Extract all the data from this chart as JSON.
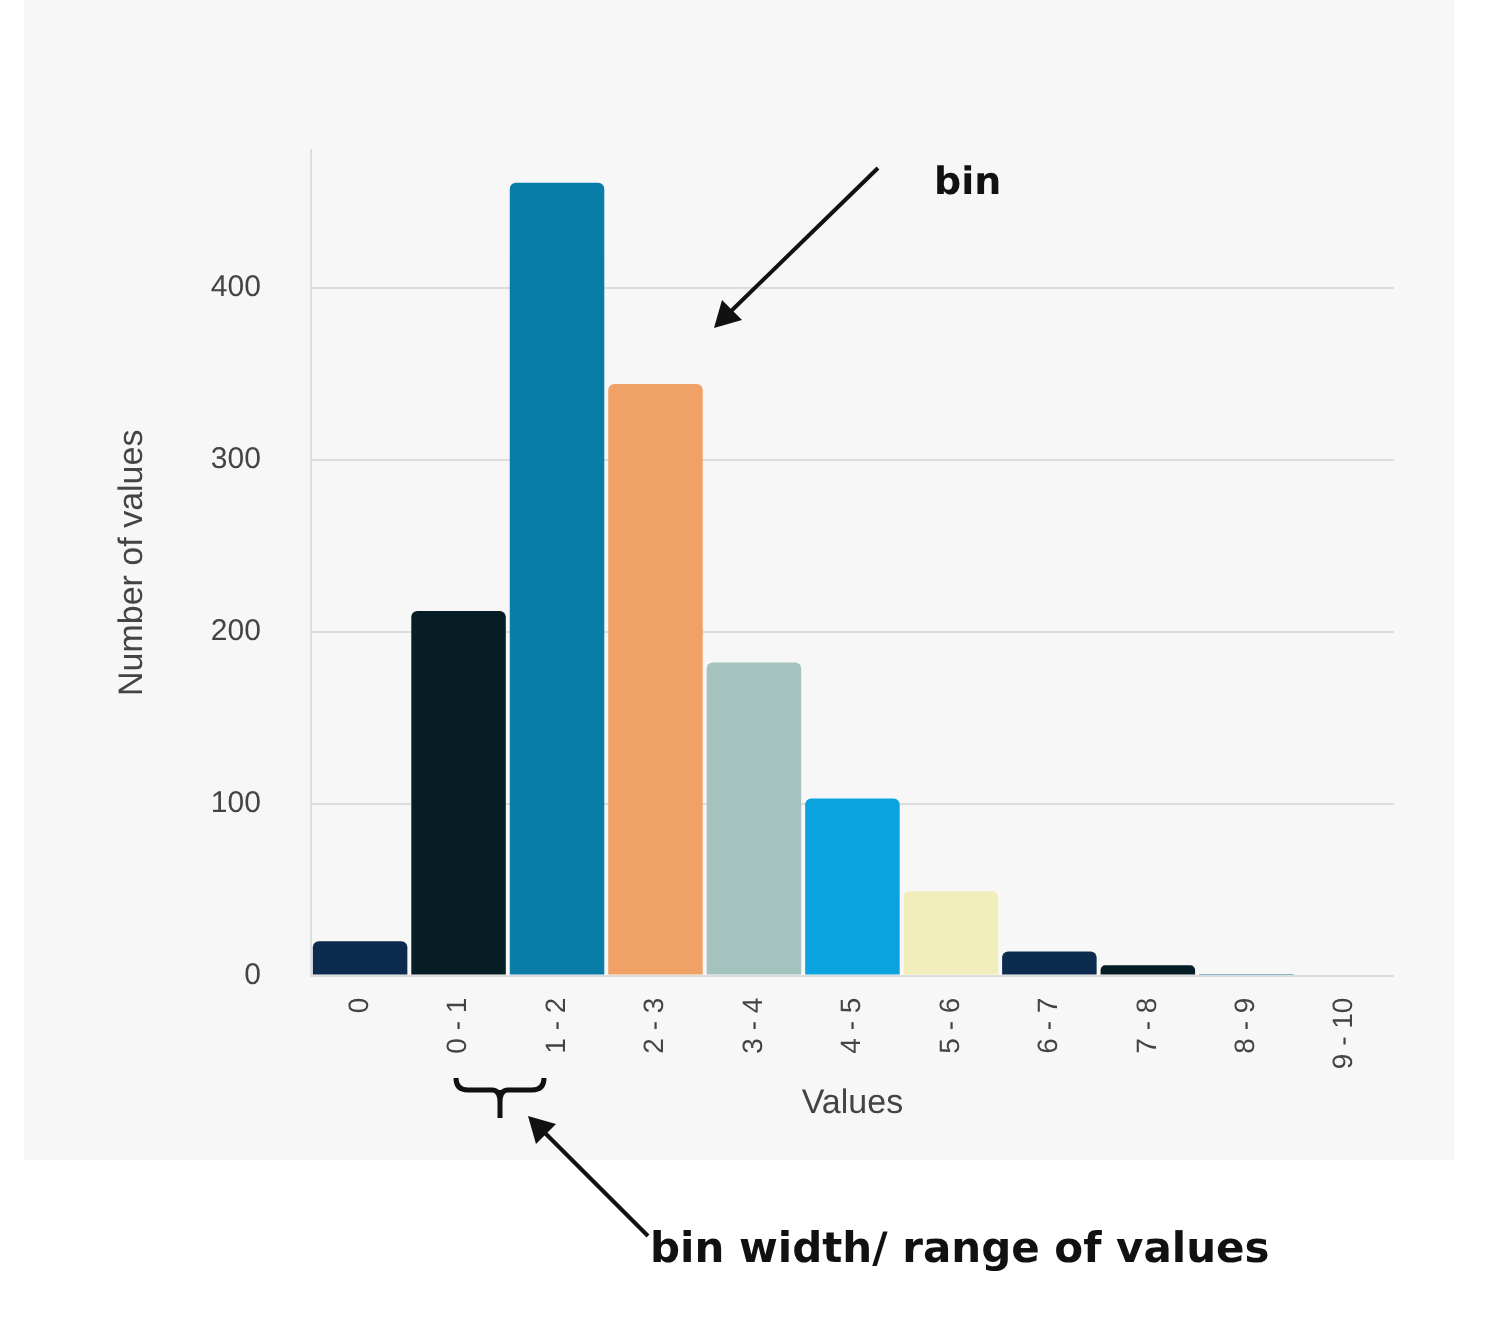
{
  "chart_data": {
    "type": "bar",
    "xlabel": "Values",
    "ylabel": "Number of values",
    "categories": [
      "0",
      "0 - 1",
      "1 - 2",
      "2 - 3",
      "3 - 4",
      "4 - 5",
      "5 - 6",
      "6 - 7",
      "7 - 8",
      "8 - 9",
      "9 - 10"
    ],
    "values": [
      20,
      212,
      461,
      344,
      182,
      103,
      49,
      14,
      6,
      1,
      0
    ],
    "colors": [
      "#0d2b4e",
      "#071d26",
      "#0a7ca8",
      "#f0a165",
      "#a4c3bf",
      "#0aa3e0",
      "#f2eebb",
      "#0d2b4e",
      "#071d26",
      "#0a7ca8",
      "#a4c3bf"
    ],
    "ylim": [
      0,
      480
    ],
    "yticks": [
      0,
      100,
      200,
      300,
      400
    ],
    "grid": "y",
    "annotations": [
      "bin",
      "bin width/ range of values"
    ]
  }
}
